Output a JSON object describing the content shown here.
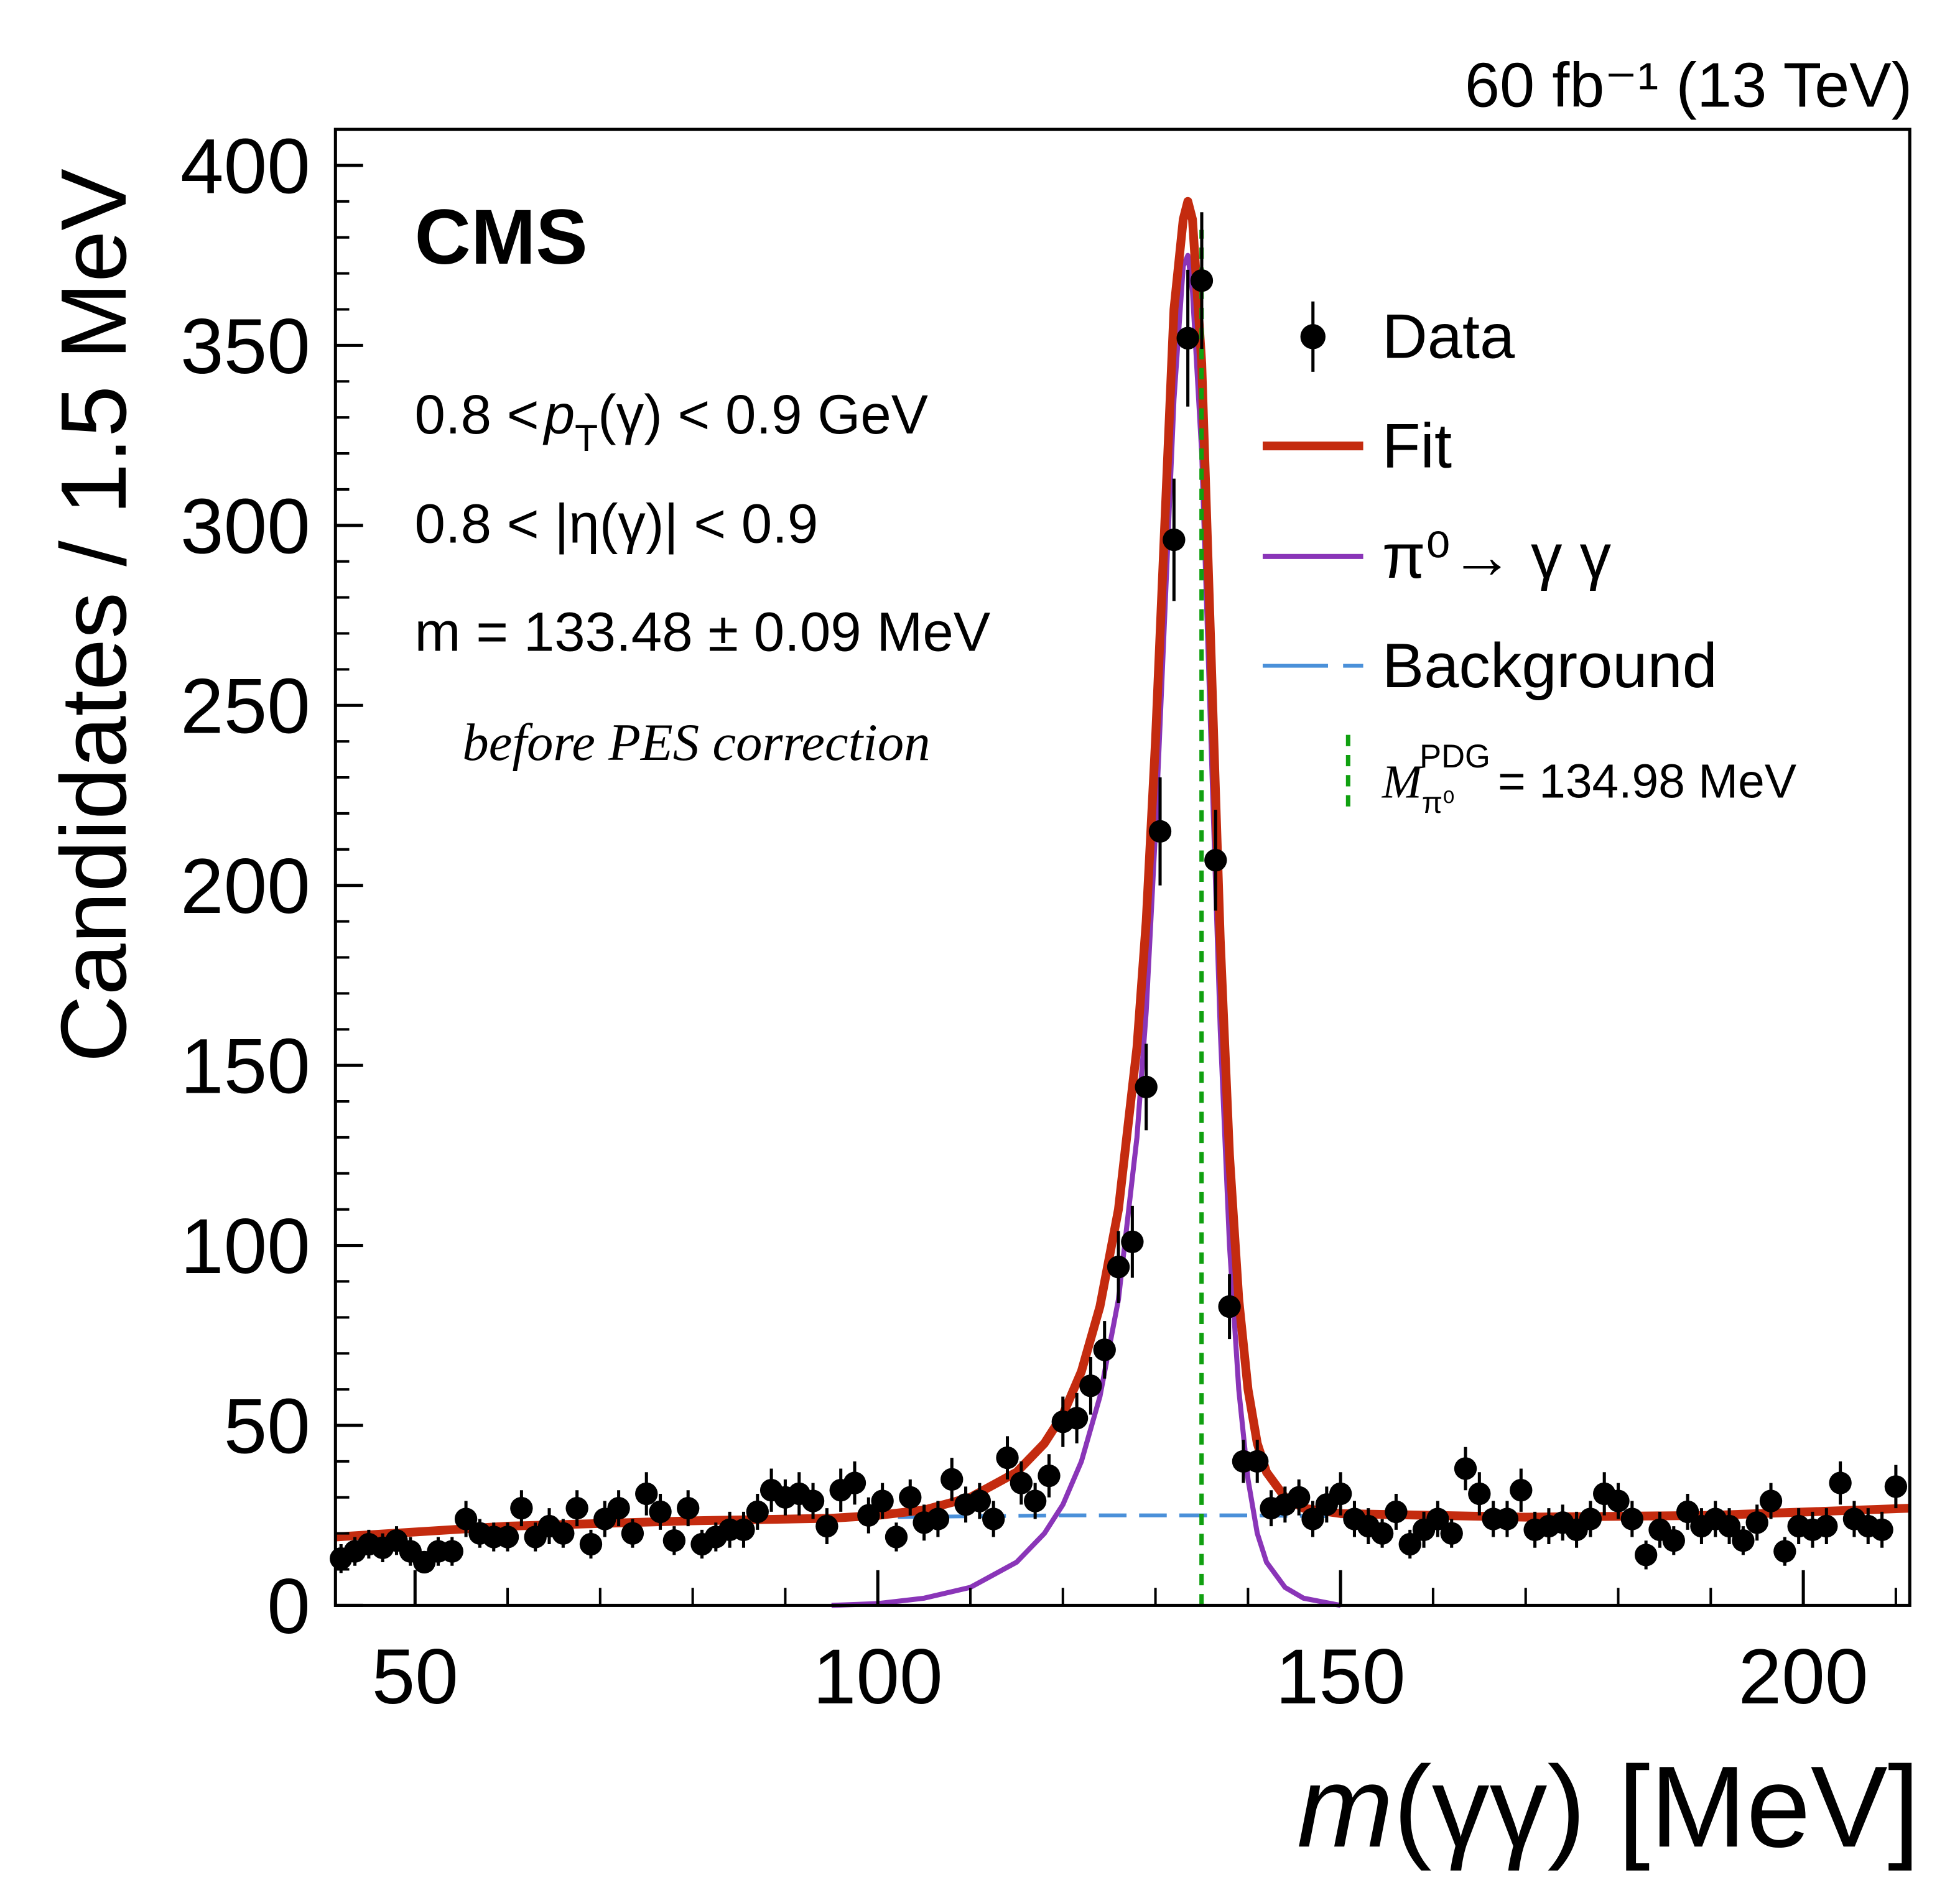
{
  "chart_data": {
    "type": "errorbar",
    "top_label": "60 fb⁻¹ (13 TeV)",
    "experiment": "CMS",
    "annotations": {
      "pt_left": "0.8 <",
      "pt_symbol": "p",
      "pt_sub": "T",
      "pt_right": "(γ) < 0.9 GeV",
      "eta": "0.8 < |η(γ)| < 0.9",
      "mass": "m = 133.48 ± 0.09 MeV",
      "note": "before PES correction"
    },
    "x_label_symbol": "m",
    "x_label_text": "(γγ) [MeV]",
    "y_label": "Candidates / 1.5 MeV",
    "xlim": [
      41.4,
      211.5
    ],
    "xticks": [
      50,
      100,
      150,
      200
    ],
    "xminorticks": [
      60,
      70,
      80,
      90,
      110,
      120,
      130,
      140,
      160,
      170,
      180,
      190,
      210
    ],
    "ylim": [
      0,
      410
    ],
    "yticks": [
      0,
      50,
      100,
      150,
      200,
      250,
      300,
      350,
      400
    ],
    "yminorticks": [
      10,
      20,
      30,
      40,
      60,
      70,
      80,
      90,
      110,
      120,
      130,
      140,
      160,
      170,
      180,
      190,
      210,
      220,
      230,
      240,
      260,
      270,
      280,
      290,
      310,
      320,
      330,
      340,
      360,
      370,
      380,
      390
    ],
    "pdg": {
      "x": 134.98,
      "color": "#10a010",
      "label_symbol": "M",
      "label_sub": "π⁰",
      "label_sup": "PDG",
      "label_text": "= 134.98 MeV"
    },
    "series": [
      {
        "name": "Data",
        "type": "errorbar",
        "color": "#000000",
        "x": [
          42,
          43.5,
          45,
          46.5,
          48,
          49.5,
          51,
          52.5,
          54,
          55.5,
          57,
          58.5,
          60,
          61.5,
          63,
          64.5,
          66,
          67.5,
          69,
          70.5,
          72,
          73.5,
          75,
          76.5,
          78,
          79.5,
          81,
          82.5,
          84,
          85.5,
          87,
          88.5,
          90,
          91.5,
          93,
          94.5,
          96,
          97.5,
          99,
          100.5,
          102,
          103.5,
          105,
          106.5,
          108,
          109.5,
          111,
          112.5,
          114,
          115.5,
          117,
          118.5,
          120,
          121.5,
          123,
          124.5,
          126,
          127.5,
          129,
          130.5,
          132,
          133.5,
          135,
          136.5,
          138,
          139.5,
          141,
          142.5,
          144,
          145.5,
          147,
          148.5,
          150,
          151.5,
          153,
          154.5,
          156,
          157.5,
          159,
          160.5,
          162,
          163.5,
          165,
          166.5,
          168,
          169.5,
          171,
          172.5,
          174,
          175.5,
          177,
          178.5,
          180,
          181.5,
          183,
          184.5,
          186,
          187.5,
          189,
          190.5,
          192,
          193.5,
          195,
          196.5,
          198,
          199.5,
          201,
          202.5,
          204,
          205.5,
          207,
          208.5,
          210
        ],
        "values": [
          13,
          15,
          17,
          16,
          18,
          15,
          12,
          15,
          15,
          24,
          20,
          19,
          19,
          27,
          19,
          22,
          20,
          27,
          17,
          24,
          27,
          20,
          31,
          26,
          18,
          27,
          17,
          19,
          21,
          21,
          26,
          32,
          30,
          31,
          29,
          22,
          32,
          34,
          25,
          29,
          19,
          30,
          23,
          24,
          35,
          28,
          29,
          24,
          41,
          34,
          29,
          36,
          51,
          52,
          61,
          71,
          94,
          101,
          144,
          215,
          296,
          352,
          368,
          207,
          83,
          40,
          40,
          27,
          28,
          30,
          24,
          28,
          31,
          24,
          22,
          20,
          26,
          17,
          21,
          24,
          20,
          38,
          31,
          24,
          24,
          32,
          21,
          22,
          23,
          21,
          24,
          31,
          29,
          24,
          14,
          21,
          18,
          26,
          22,
          24,
          22,
          18,
          23,
          29,
          15,
          22,
          21,
          22,
          34,
          24,
          22,
          21,
          33
        ],
        "errors": [
          4,
          4,
          4,
          4,
          4,
          4,
          3,
          4,
          4,
          5,
          4,
          4,
          4,
          5,
          4,
          5,
          4,
          5,
          4,
          5,
          5,
          4,
          6,
          5,
          4,
          5,
          4,
          4,
          5,
          5,
          5,
          6,
          5,
          6,
          5,
          5,
          6,
          6,
          5,
          5,
          4,
          5,
          5,
          5,
          6,
          5,
          5,
          5,
          6,
          6,
          5,
          6,
          7,
          7,
          8,
          8,
          10,
          10,
          12,
          15,
          17,
          19,
          19,
          14,
          9,
          6,
          6,
          5,
          5,
          5,
          5,
          5,
          6,
          5,
          5,
          4,
          5,
          4,
          5,
          5,
          4,
          6,
          6,
          5,
          5,
          6,
          5,
          5,
          5,
          5,
          5,
          6,
          5,
          5,
          4,
          5,
          4,
          5,
          5,
          5,
          5,
          4,
          5,
          5,
          4,
          5,
          5,
          5,
          6,
          5,
          5,
          5,
          6
        ]
      },
      {
        "name": "Fit",
        "type": "line",
        "color": "#c42b0f",
        "x": [
          41.4,
          60,
          80,
          95,
          100,
          105,
          110,
          115,
          118,
          120,
          122,
          124,
          126,
          128,
          129,
          130,
          131,
          132,
          133,
          133.5,
          134,
          135,
          136,
          137,
          138,
          139,
          140,
          141,
          142,
          144,
          146,
          150,
          170,
          190,
          211.5
        ],
        "values": [
          19,
          22,
          23.5,
          24.2,
          25,
          26.5,
          30,
          37,
          45,
          53,
          65,
          83,
          110,
          155,
          190,
          240,
          300,
          360,
          385,
          390,
          385,
          345,
          265,
          185,
          125,
          85,
          60,
          45,
          37,
          30,
          27,
          25.5,
          24.5,
          25,
          27
        ]
      },
      {
        "name": "π⁰→ γ γ",
        "type": "line",
        "color": "#8a35b8",
        "x": [
          95,
          100,
          105,
          110,
          115,
          118,
          120,
          122,
          124,
          126,
          128,
          129,
          130,
          131,
          132,
          133,
          133.5,
          134,
          135,
          136,
          137,
          138,
          139,
          140,
          141,
          142,
          144,
          146,
          150
        ],
        "values": [
          0,
          0.5,
          2,
          5,
          12,
          20,
          28,
          40,
          58,
          85,
          130,
          165,
          215,
          275,
          335,
          372,
          375,
          365,
          320,
          240,
          160,
          100,
          60,
          35,
          20,
          12,
          5,
          2,
          0
        ]
      },
      {
        "name": "Background",
        "type": "line",
        "dashed": true,
        "color": "#4a90d9",
        "x": [
          41.4,
          60,
          80,
          100,
          120,
          140,
          160,
          180,
          200,
          211.5
        ],
        "values": [
          19,
          22,
          23.5,
          24.5,
          25,
          25,
          24.5,
          24.5,
          25.5,
          27
        ]
      }
    ]
  }
}
